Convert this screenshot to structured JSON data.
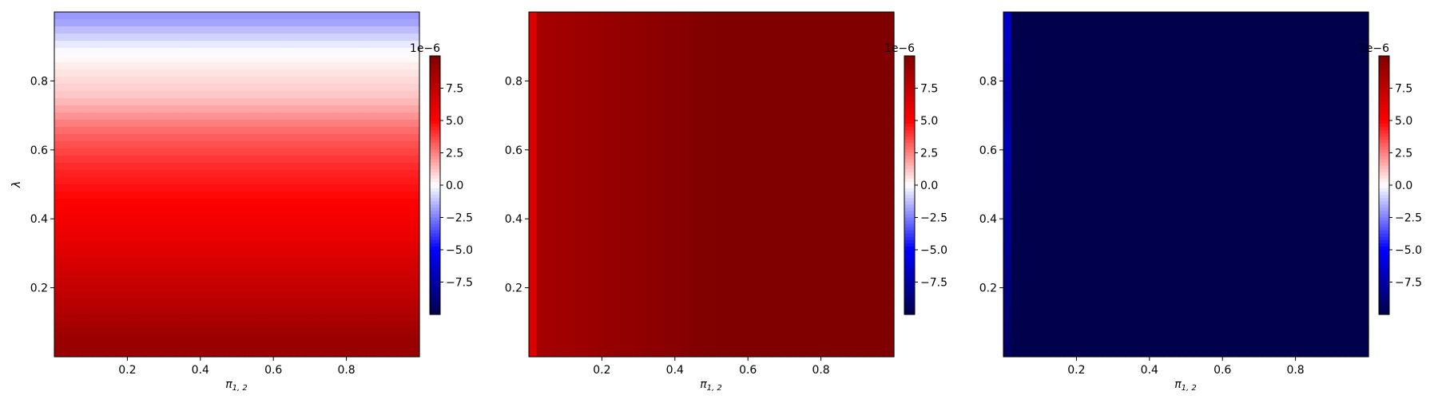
{
  "chart_data": [
    {
      "type": "heatmap",
      "panel": "left",
      "title": "",
      "xlabel": "π1, 2",
      "ylabel": "λ",
      "xlim": [
        0,
        1
      ],
      "ylim": [
        0,
        1
      ],
      "x_ticks": [
        0.2,
        0.4,
        0.6,
        0.8
      ],
      "y_ticks": [
        0.2,
        0.4,
        0.6,
        0.8
      ],
      "x_tick_labels": [
        "0.2",
        "0.4",
        "0.6",
        "0.8"
      ],
      "y_tick_labels": [
        "0.2",
        "0.4",
        "0.6",
        "0.8"
      ],
      "pattern": "varies with lambda only",
      "samples": [
        {
          "x": 0.5,
          "y": 0.98,
          "value": -2.0
        },
        {
          "x": 0.5,
          "y": 0.9,
          "value": -0.3
        },
        {
          "x": 0.5,
          "y": 0.85,
          "value": 0.3
        },
        {
          "x": 0.5,
          "y": 0.75,
          "value": 1.2
        },
        {
          "x": 0.5,
          "y": 0.65,
          "value": 3.0
        },
        {
          "x": 0.5,
          "y": 0.55,
          "value": 4.2
        },
        {
          "x": 0.5,
          "y": 0.45,
          "value": 5.0
        },
        {
          "x": 0.5,
          "y": 0.35,
          "value": 5.8
        },
        {
          "x": 0.5,
          "y": 0.25,
          "value": 6.8
        },
        {
          "x": 0.5,
          "y": 0.15,
          "value": 7.8
        },
        {
          "x": 0.5,
          "y": 0.05,
          "value": 9.0
        }
      ],
      "colorbar": {
        "cmap": "seismic",
        "vmin": -10,
        "vmax": 10,
        "scale_label": "1e−6",
        "tick_values": [
          -7.5,
          -5.0,
          -2.5,
          0.0,
          2.5,
          5.0,
          7.5
        ],
        "tick_labels": [
          "−7.5",
          "−5.0",
          "−2.5",
          "0.0",
          "2.5",
          "5.0",
          "7.5"
        ]
      }
    },
    {
      "type": "heatmap",
      "panel": "middle",
      "title": "",
      "xlabel": "π1, 2",
      "ylabel": "",
      "xlim": [
        0,
        1
      ],
      "ylim": [
        0,
        1
      ],
      "x_ticks": [
        0.2,
        0.4,
        0.6,
        0.8
      ],
      "y_ticks": [
        0.2,
        0.4,
        0.6,
        0.8
      ],
      "x_tick_labels": [
        "0.2",
        "0.4",
        "0.6",
        "0.8"
      ],
      "y_tick_labels": [
        "0.2",
        "0.4",
        "0.6",
        "0.8"
      ],
      "pattern": "varies with pi only",
      "samples": [
        {
          "x": 0.005,
          "y": 0.5,
          "value": 5.0
        },
        {
          "x": 0.015,
          "y": 0.5,
          "value": 7.5
        },
        {
          "x": 0.025,
          "y": 0.5,
          "value": 8.5
        },
        {
          "x": 0.5,
          "y": 0.5,
          "value": 10.0
        }
      ],
      "colorbar": {
        "cmap": "seismic",
        "vmin": -10,
        "vmax": 10,
        "scale_label": "1e−6",
        "tick_values": [
          -7.5,
          -5.0,
          -2.5,
          0.0,
          2.5,
          5.0,
          7.5
        ],
        "tick_labels": [
          "−7.5",
          "−5.0",
          "−2.5",
          "0.0",
          "2.5",
          "5.0",
          "7.5"
        ]
      }
    },
    {
      "type": "heatmap",
      "panel": "right",
      "title": "",
      "xlabel": "π1, 2",
      "ylabel": "",
      "xlim": [
        0,
        1
      ],
      "ylim": [
        0,
        1
      ],
      "x_ticks": [
        0.2,
        0.4,
        0.6,
        0.8
      ],
      "y_ticks": [
        0.2,
        0.4,
        0.6,
        0.8
      ],
      "x_tick_labels": [
        "0.2",
        "0.4",
        "0.6",
        "0.8"
      ],
      "y_tick_labels": [
        "0.2",
        "0.4",
        "0.6",
        "0.8"
      ],
      "pattern": "mostly minimum, lighter edge at small pi and high lambda",
      "samples": [
        {
          "x": 0.005,
          "y": 0.95,
          "value": -3.0
        },
        {
          "x": 0.005,
          "y": 0.6,
          "value": -6.5
        },
        {
          "x": 0.015,
          "y": 0.95,
          "value": -6.0
        },
        {
          "x": 0.5,
          "y": 0.5,
          "value": -10.0
        }
      ],
      "colorbar": {
        "cmap": "seismic",
        "vmin": -10,
        "vmax": 10,
        "scale_label": "1e−6",
        "tick_values": [
          -7.5,
          -5.0,
          -2.5,
          0.0,
          2.5,
          5.0,
          7.5
        ],
        "tick_labels": [
          "−7.5",
          "−5.0",
          "−2.5",
          "0.0",
          "2.5",
          "5.0",
          "7.5"
        ]
      }
    }
  ]
}
